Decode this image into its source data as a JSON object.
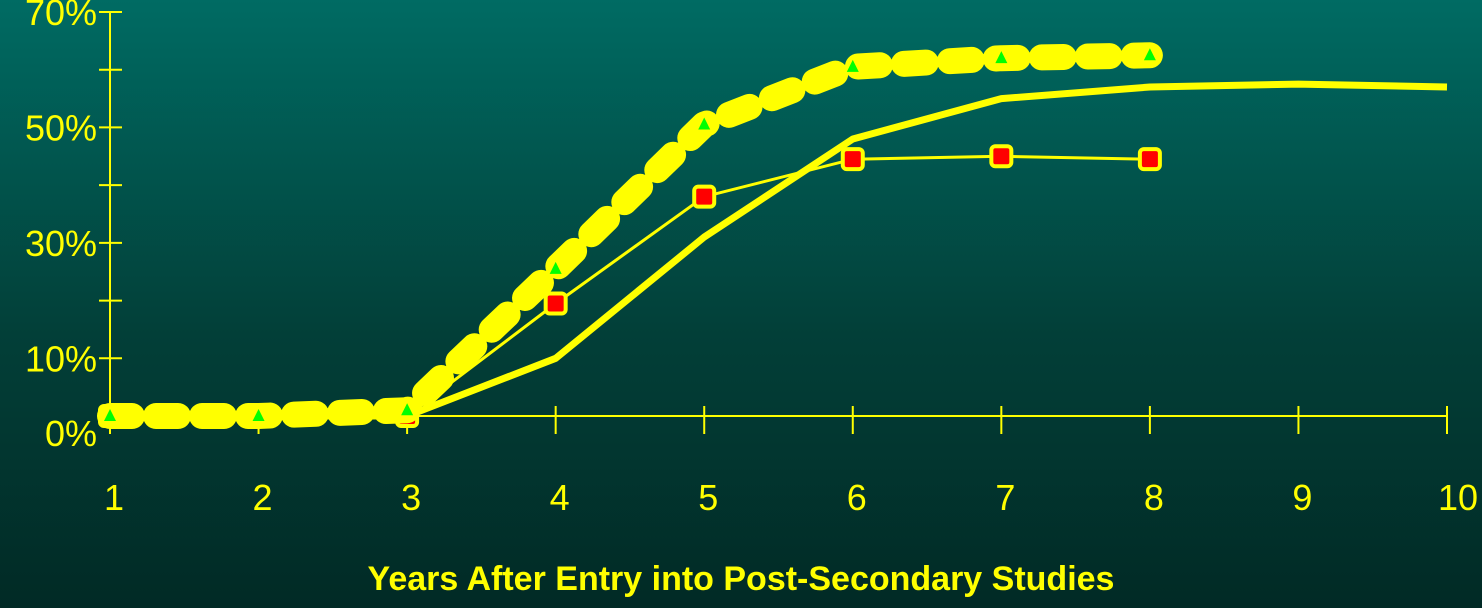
{
  "chart_data": {
    "type": "line",
    "xlabel": "Years After Entry into Post-Secondary Studies",
    "ylabel": "",
    "x_ticks": [
      1,
      2,
      3,
      4,
      5,
      6,
      7,
      8,
      9,
      10
    ],
    "y_tick_labels": [
      "70%",
      "50%",
      "30%",
      "10%",
      "0%"
    ],
    "y_tick_values": [
      70,
      50,
      30,
      10,
      0
    ],
    "xlim": [
      1,
      10
    ],
    "ylim": [
      0,
      70
    ],
    "grid": false,
    "series": [
      {
        "style": "thick-solid",
        "color": "#ffff00",
        "x": [
          1,
          2,
          3,
          4,
          5,
          6,
          7,
          8,
          9,
          10
        ],
        "values": [
          0,
          0,
          0,
          10,
          31,
          48,
          55,
          57,
          57.5,
          57
        ]
      },
      {
        "style": "thin-solid-square-markers",
        "color": "#ffff00",
        "marker_color": "#ff0000",
        "x": [
          1,
          2,
          3,
          4,
          5,
          6,
          7,
          8
        ],
        "values": [
          0,
          0,
          0,
          19.5,
          38,
          44.5,
          45,
          44.5
        ]
      },
      {
        "style": "thick-dotted-triangle-markers",
        "color": "#ffff00",
        "marker_color": "#00ff00",
        "x": [
          1,
          2,
          3,
          4,
          5,
          6,
          7,
          8
        ],
        "values": [
          0,
          0,
          1,
          25.5,
          50.5,
          60.5,
          62,
          62.5
        ]
      }
    ]
  }
}
